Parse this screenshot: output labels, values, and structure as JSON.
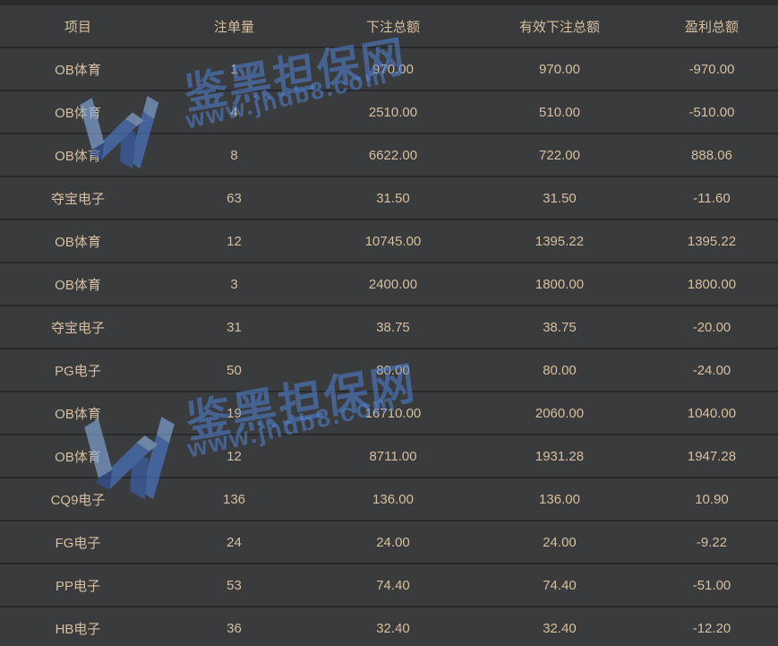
{
  "table": {
    "columns": [
      {
        "key": "item",
        "label": "项目"
      },
      {
        "key": "bet_count",
        "label": "注单量"
      },
      {
        "key": "bet_total",
        "label": "下注总额"
      },
      {
        "key": "valid_bet_total",
        "label": "有效下注总额"
      },
      {
        "key": "profit_total",
        "label": "盈利总额"
      }
    ],
    "rows": [
      {
        "item": "OB体育",
        "bet_count": "1",
        "bet_total": "970.00",
        "valid_bet_total": "970.00",
        "profit_total": "-970.00"
      },
      {
        "item": "OB体育",
        "bet_count": "4",
        "bet_total": "2510.00",
        "valid_bet_total": "510.00",
        "profit_total": "-510.00"
      },
      {
        "item": "OB体育",
        "bet_count": "8",
        "bet_total": "6622.00",
        "valid_bet_total": "722.00",
        "profit_total": "888.06"
      },
      {
        "item": "夺宝电子",
        "bet_count": "63",
        "bet_total": "31.50",
        "valid_bet_total": "31.50",
        "profit_total": "-11.60"
      },
      {
        "item": "OB体育",
        "bet_count": "12",
        "bet_total": "10745.00",
        "valid_bet_total": "1395.22",
        "profit_total": "1395.22"
      },
      {
        "item": "OB体育",
        "bet_count": "3",
        "bet_total": "2400.00",
        "valid_bet_total": "1800.00",
        "profit_total": "1800.00"
      },
      {
        "item": "夺宝电子",
        "bet_count": "31",
        "bet_total": "38.75",
        "valid_bet_total": "38.75",
        "profit_total": "-20.00"
      },
      {
        "item": "PG电子",
        "bet_count": "50",
        "bet_total": "80.00",
        "valid_bet_total": "80.00",
        "profit_total": "-24.00"
      },
      {
        "item": "OB体育",
        "bet_count": "19",
        "bet_total": "16710.00",
        "valid_bet_total": "2060.00",
        "profit_total": "1040.00"
      },
      {
        "item": "OB体育",
        "bet_count": "12",
        "bet_total": "8711.00",
        "valid_bet_total": "1931.28",
        "profit_total": "1947.28"
      },
      {
        "item": "CQ9电子",
        "bet_count": "136",
        "bet_total": "136.00",
        "valid_bet_total": "136.00",
        "profit_total": "10.90"
      },
      {
        "item": "FG电子",
        "bet_count": "24",
        "bet_total": "24.00",
        "valid_bet_total": "24.00",
        "profit_total": "-9.22"
      },
      {
        "item": "PP电子",
        "bet_count": "53",
        "bet_total": "74.40",
        "valid_bet_total": "74.40",
        "profit_total": "-51.00"
      },
      {
        "item": "HB电子",
        "bet_count": "36",
        "bet_total": "32.40",
        "valid_bet_total": "32.40",
        "profit_total": "-12.20"
      }
    ]
  },
  "watermark": {
    "brand_cn": "鉴黑担保网",
    "site_url": "www.jhdb8.com",
    "logo_icon": "jhdb8-m-ribbon-logo"
  },
  "colors": {
    "background": "#3a3b3c",
    "row_divider": "#28292a",
    "table_text": "#d6bf9f",
    "watermark_blue": "#4f83d6",
    "logo_blue_light": "#87ace1",
    "logo_blue_mid": "#4a7dd2",
    "logo_blue_deep": "#3a64b6",
    "logo_blue_dark": "#2e56a4"
  }
}
